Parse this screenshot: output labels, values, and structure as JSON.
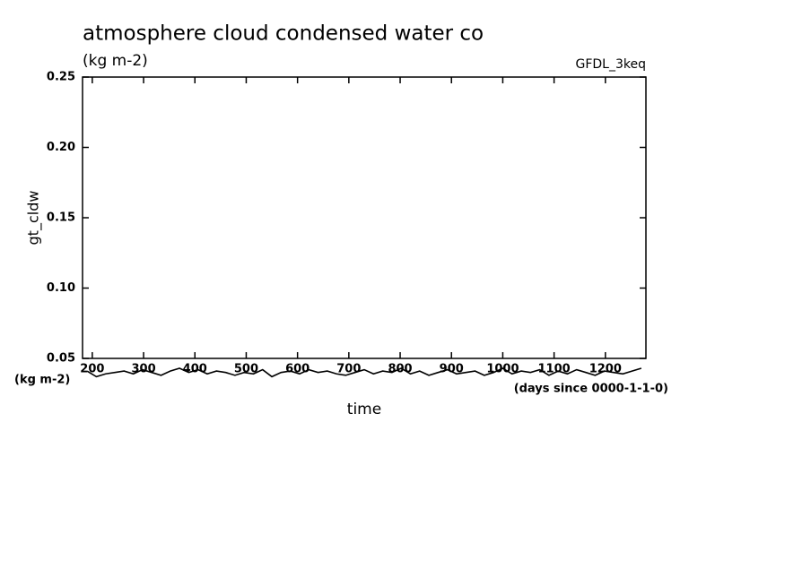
{
  "chart_data": {
    "type": "line",
    "title": "atmosphere cloud condensed water co",
    "subtitle": "(kg m-2)",
    "annotation": "GFDL_3keq",
    "y_label": "gt_cldw",
    "y_unit": "(kg m-2)",
    "x_label": "time",
    "x_unit": "(days since 0000-1-1-0)",
    "xlim": [
      181,
      1279
    ],
    "ylim": [
      0.05,
      0.25
    ],
    "xticks": [
      200,
      300,
      400,
      500,
      600,
      700,
      800,
      900,
      1000,
      1100,
      1200
    ],
    "yticks": [
      0.05,
      {
        "value": 0.1,
        "label": "0.10"
      },
      0.15,
      {
        "value": 0.2,
        "label": "0.20"
      },
      0.25
    ],
    "x": [
      190,
      208,
      226,
      244,
      262,
      280,
      298,
      316,
      334,
      352,
      370,
      388,
      406,
      424,
      442,
      460,
      478,
      496,
      514,
      532,
      550,
      568,
      586,
      604,
      622,
      640,
      658,
      676,
      694,
      712,
      730,
      748,
      766,
      784,
      802,
      820,
      838,
      856,
      874,
      892,
      910,
      928,
      946,
      964,
      982,
      1000,
      1018,
      1036,
      1054,
      1072,
      1090,
      1108,
      1126,
      1144,
      1162,
      1180,
      1198,
      1216,
      1234,
      1252,
      1270
    ],
    "series": [
      {
        "name": "gt_cldw",
        "color": "#000000",
        "values": [
          0.041,
          0.037,
          0.039,
          0.04,
          0.041,
          0.039,
          0.042,
          0.04,
          0.038,
          0.041,
          0.043,
          0.04,
          0.042,
          0.039,
          0.041,
          0.04,
          0.038,
          0.04,
          0.039,
          0.042,
          0.037,
          0.04,
          0.041,
          0.039,
          0.042,
          0.04,
          0.041,
          0.039,
          0.038,
          0.04,
          0.042,
          0.039,
          0.041,
          0.04,
          0.043,
          0.039,
          0.041,
          0.038,
          0.04,
          0.042,
          0.039,
          0.04,
          0.041,
          0.038,
          0.04,
          0.043,
          0.039,
          0.041,
          0.04,
          0.042,
          0.038,
          0.041,
          0.039,
          0.042,
          0.04,
          0.038,
          0.041,
          0.04,
          0.039,
          0.041,
          0.043
        ]
      }
    ]
  }
}
